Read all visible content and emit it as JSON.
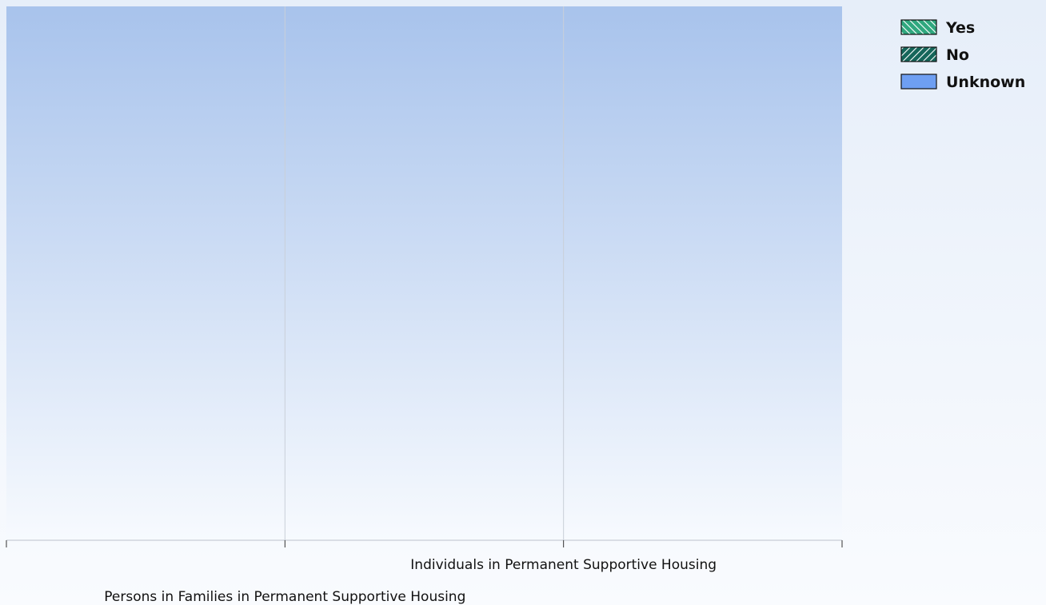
{
  "chart_data": {
    "type": "bar",
    "stacked": true,
    "categories": [
      "Persons in Families in Permanent Supportive Housing",
      "Individuals in Permanent Supportive Housing"
    ],
    "series": [
      {
        "name": "Yes",
        "color": "#2fa77e",
        "hatch": "back",
        "values": [
          null,
          null
        ]
      },
      {
        "name": "No",
        "color": "#15665a",
        "hatch": "forward",
        "values": [
          null,
          null
        ]
      },
      {
        "name": "Unknown",
        "color": "#6e9ff2",
        "values": [
          null,
          null
        ]
      }
    ],
    "legend": "top-right"
  }
}
